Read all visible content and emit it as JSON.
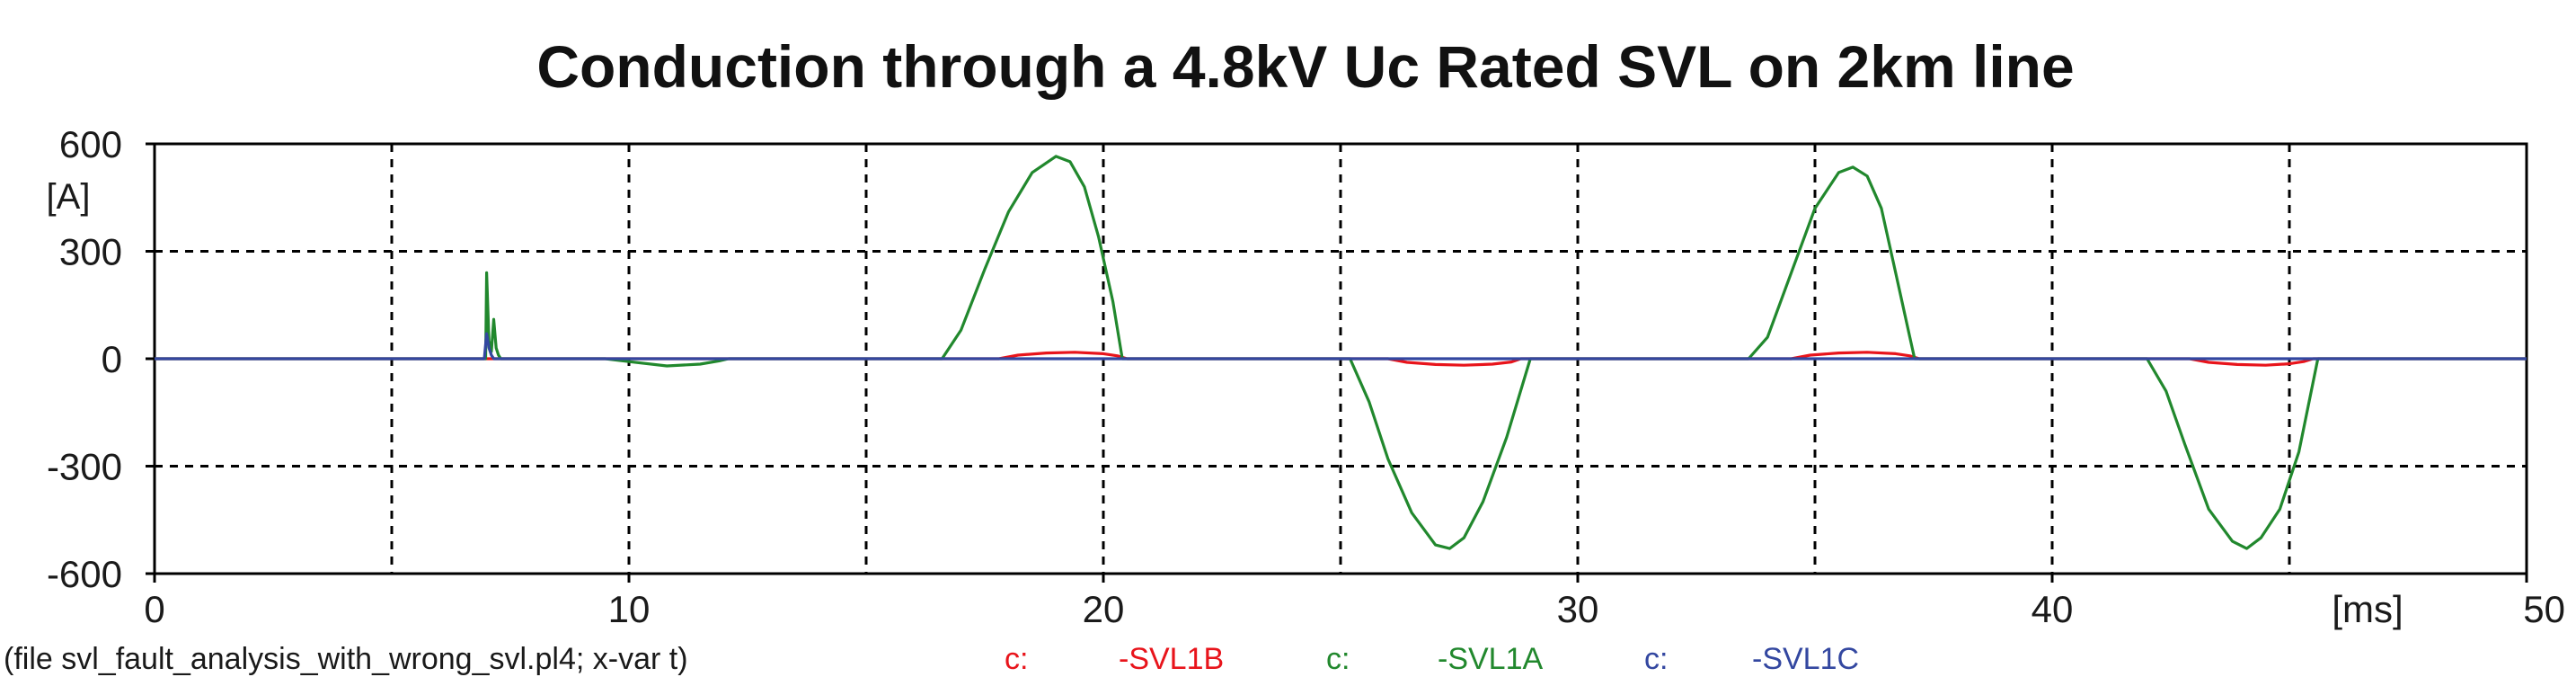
{
  "chart_data": {
    "type": "line",
    "title": "Conduction through a 4.8kV Uc Rated SVL on 2km line",
    "xlabel": "[ms]",
    "ylabel": "[A]",
    "xlim": [
      0,
      50
    ],
    "ylim": [
      -600,
      600
    ],
    "x_ticks": [
      "0",
      "10",
      "20",
      "30",
      "40",
      "50"
    ],
    "y_ticks": [
      "600",
      "300",
      "0",
      "-300",
      "-600"
    ],
    "grid": true,
    "series": [
      {
        "name": "-SVL1B",
        "color": "#e8141b",
        "x": [
          0,
          17.8,
          18.2,
          18.8,
          19.4,
          20.0,
          20.3,
          20.5,
          26.0,
          26.4,
          27.0,
          27.6,
          28.2,
          28.6,
          28.8,
          34.5,
          34.9,
          35.5,
          36.1,
          36.7,
          37.0,
          37.2,
          42.9,
          43.3,
          43.9,
          44.5,
          45.0,
          45.3,
          45.5,
          50
        ],
        "y": [
          0,
          0,
          10,
          16,
          18,
          14,
          8,
          0,
          0,
          -10,
          -16,
          -18,
          -15,
          -9,
          0,
          0,
          10,
          16,
          18,
          14,
          8,
          0,
          0,
          -10,
          -16,
          -18,
          -14,
          -8,
          0,
          0
        ]
      },
      {
        "name": "-SVL1A",
        "color": "#21882d",
        "x": [
          0,
          6.98,
          7.0,
          7.05,
          7.1,
          7.15,
          7.2,
          7.25,
          7.3,
          7.35,
          9.5,
          10.0,
          10.8,
          11.5,
          11.9,
          12.1,
          16.6,
          17.0,
          17.5,
          18.0,
          18.5,
          19.0,
          19.3,
          19.6,
          19.9,
          20.2,
          20.4,
          25.2,
          25.6,
          26.0,
          26.5,
          27.0,
          27.3,
          27.6,
          28.0,
          28.5,
          29.0,
          33.6,
          34.0,
          34.5,
          35.0,
          35.5,
          35.8,
          36.1,
          36.4,
          36.7,
          37.0,
          37.1,
          42.0,
          42.4,
          42.8,
          43.3,
          43.8,
          44.1,
          44.4,
          44.8,
          45.2,
          45.6,
          50
        ],
        "y": [
          0,
          0,
          240,
          50,
          20,
          110,
          30,
          10,
          0,
          0,
          0,
          -8,
          -20,
          -15,
          -6,
          0,
          0,
          80,
          250,
          410,
          520,
          565,
          550,
          480,
          340,
          160,
          0,
          0,
          -120,
          -280,
          -430,
          -520,
          -530,
          -500,
          -400,
          -220,
          0,
          0,
          60,
          240,
          420,
          520,
          535,
          510,
          420,
          240,
          60,
          0,
          0,
          -90,
          -240,
          -420,
          -510,
          -530,
          -500,
          -420,
          -260,
          0,
          0
        ]
      },
      {
        "name": "-SVL1C",
        "color": "#3347a0",
        "x": [
          0,
          6.95,
          7.0,
          7.05,
          7.1,
          7.15,
          7.2,
          50
        ],
        "y": [
          0,
          0,
          70,
          30,
          10,
          0,
          0,
          0
        ]
      }
    ]
  },
  "footer": {
    "file_text": "(file svl_fault_analysis_with_wrong_svl.pl4; x-var t)",
    "prefix_label": "c:",
    "colors": {
      "text": "#1a1a1a",
      "grid": "#000000",
      "axis": "#000000"
    }
  }
}
